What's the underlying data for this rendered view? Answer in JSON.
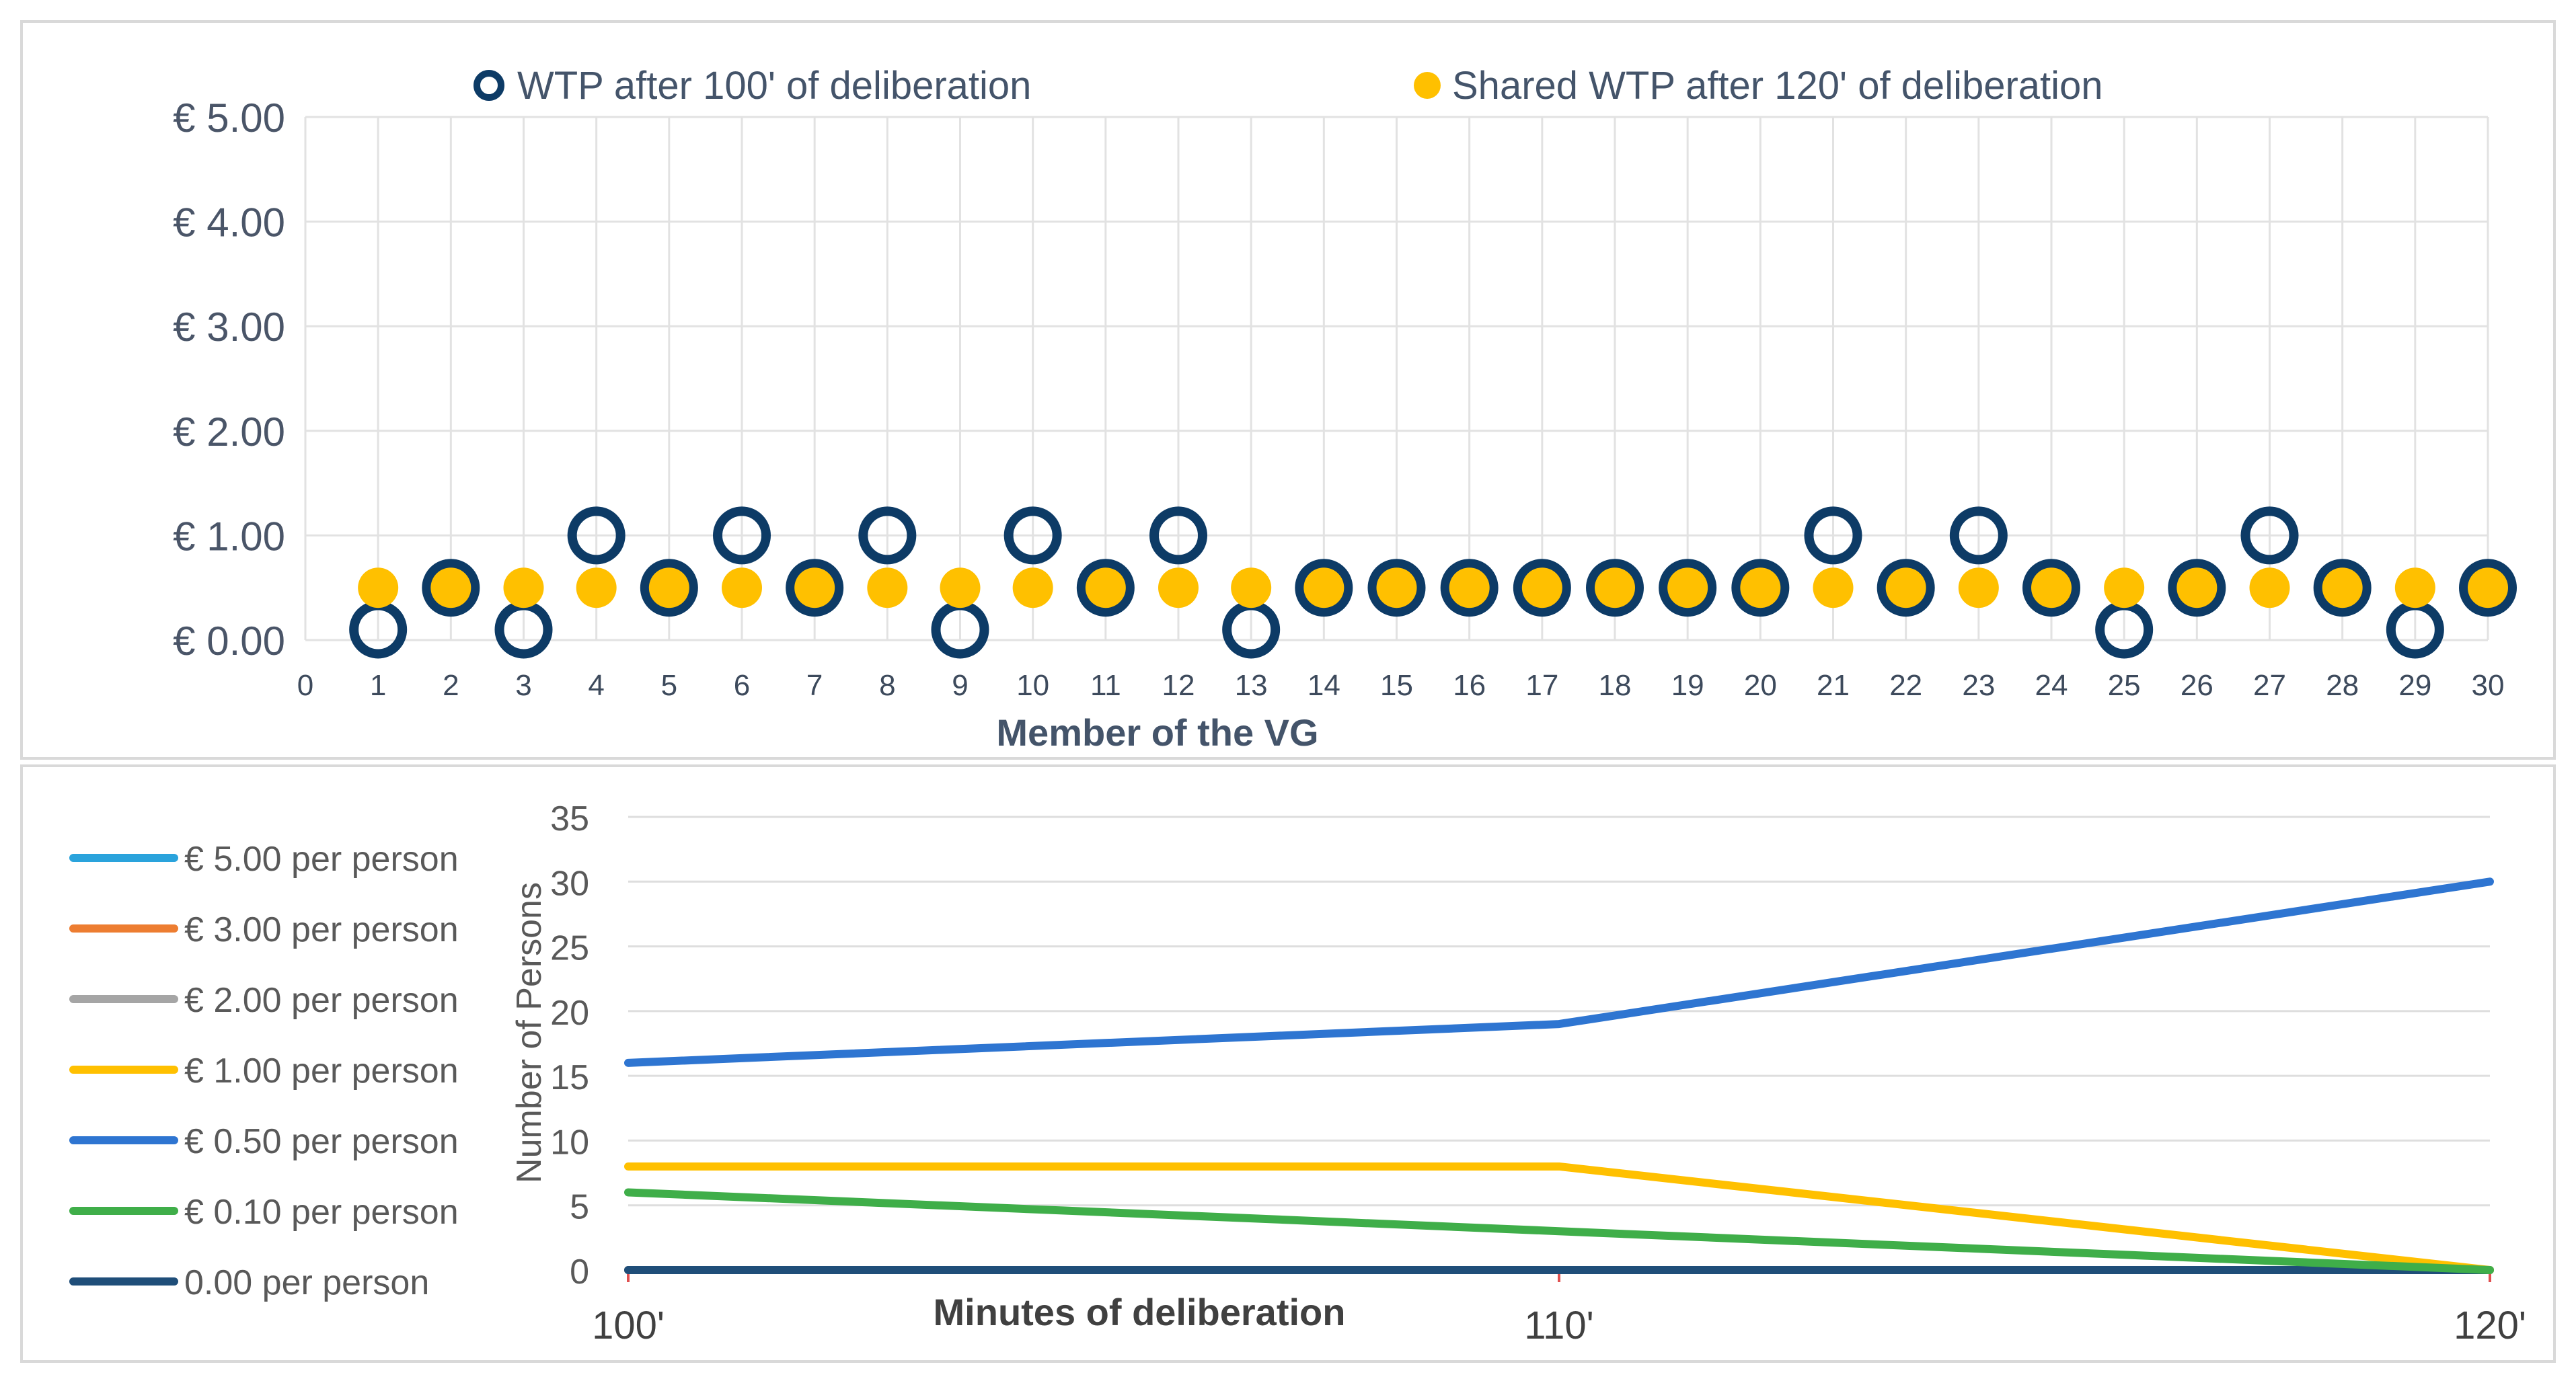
{
  "chart_data": [
    {
      "type": "scatter",
      "title": "",
      "xlabel": "Member of the VG",
      "ylabel": "",
      "xlim": [
        0,
        30
      ],
      "ylim": [
        0,
        5
      ],
      "x_ticks": [
        "0",
        "1",
        "2",
        "3",
        "4",
        "5",
        "6",
        "7",
        "8",
        "9",
        "10",
        "11",
        "12",
        "13",
        "14",
        "15",
        "16",
        "17",
        "18",
        "19",
        "20",
        "21",
        "22",
        "23",
        "24",
        "25",
        "26",
        "27",
        "28",
        "29",
        "30"
      ],
      "y_ticks": [
        {
          "value": 0,
          "label": "€ 0.00"
        },
        {
          "value": 1,
          "label": "€ 1.00"
        },
        {
          "value": 2,
          "label": "€ 2.00"
        },
        {
          "value": 3,
          "label": "€ 3.00"
        },
        {
          "value": 4,
          "label": "€ 4.00"
        },
        {
          "value": 5,
          "label": "€ 5.00"
        }
      ],
      "grid": true,
      "legend_position": "top",
      "series": [
        {
          "name": "WTP after 100' of deliberation",
          "marker": "hollow-circle",
          "color": "#0d3b66",
          "x": [
            1,
            2,
            3,
            4,
            5,
            6,
            7,
            8,
            9,
            10,
            11,
            12,
            13,
            14,
            15,
            16,
            17,
            18,
            19,
            20,
            21,
            22,
            23,
            24,
            25,
            26,
            27,
            28,
            29,
            30
          ],
          "values": [
            0.1,
            0.5,
            0.1,
            1.0,
            0.5,
            1.0,
            0.5,
            1.0,
            0.1,
            1.0,
            0.5,
            1.0,
            0.1,
            0.5,
            0.5,
            0.5,
            0.5,
            0.5,
            0.5,
            0.5,
            1.0,
            0.5,
            1.0,
            0.5,
            0.1,
            0.5,
            1.0,
            0.5,
            0.1,
            0.5
          ]
        },
        {
          "name": "Shared WTP after 120' of deliberation",
          "marker": "filled-circle",
          "color": "#ffc000",
          "x": [
            1,
            2,
            3,
            4,
            5,
            6,
            7,
            8,
            9,
            10,
            11,
            12,
            13,
            14,
            15,
            16,
            17,
            18,
            19,
            20,
            21,
            22,
            23,
            24,
            25,
            26,
            27,
            28,
            29,
            30
          ],
          "values": [
            0.5,
            0.5,
            0.5,
            0.5,
            0.5,
            0.5,
            0.5,
            0.5,
            0.5,
            0.5,
            0.5,
            0.5,
            0.5,
            0.5,
            0.5,
            0.5,
            0.5,
            0.5,
            0.5,
            0.5,
            0.5,
            0.5,
            0.5,
            0.5,
            0.5,
            0.5,
            0.5,
            0.5,
            0.5,
            0.5
          ]
        }
      ]
    },
    {
      "type": "line",
      "title": "",
      "xlabel": "Minutes of deliberation",
      "ylabel": "Number of Persons",
      "categories": [
        "100'",
        "110'",
        "120'"
      ],
      "ylim": [
        0,
        35
      ],
      "y_ticks": [
        "0",
        "5",
        "10",
        "15",
        "20",
        "25",
        "30",
        "35"
      ],
      "grid": true,
      "legend_position": "left",
      "series": [
        {
          "name": "€ 5.00 per person",
          "color": "#2aa3dc",
          "values": [
            0,
            0,
            0
          ]
        },
        {
          "name": "€ 3.00 per person",
          "color": "#ed7d31",
          "values": [
            0,
            0,
            0
          ]
        },
        {
          "name": "€ 2.00 per person",
          "color": "#a5a5a5",
          "values": [
            0,
            0,
            0
          ]
        },
        {
          "name": "€ 1.00 per person",
          "color": "#ffc000",
          "values": [
            8,
            8,
            0
          ]
        },
        {
          "name": "€ 0.50 per person",
          "color": "#2e75d1",
          "values": [
            16,
            19,
            30
          ]
        },
        {
          "name": "€ 0.10 per person",
          "color": "#3fae49",
          "values": [
            6,
            3,
            0
          ]
        },
        {
          "name": "0.00 per person",
          "color": "#1f4e79",
          "values": [
            0,
            0,
            0
          ]
        }
      ]
    }
  ]
}
